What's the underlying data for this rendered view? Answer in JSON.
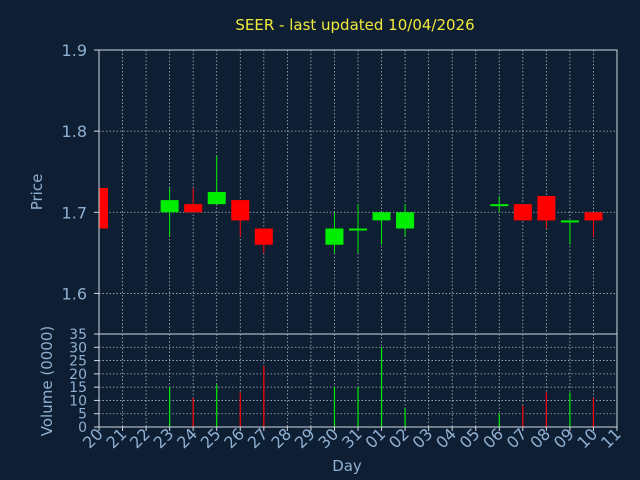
{
  "title": "SEER - last updated 10/04/2026",
  "colors": {
    "up": "#00ee00",
    "down": "#ff0000",
    "title": "#f2ea3a",
    "axis": "#8fb0d2",
    "background": "#0f1f33"
  },
  "chart_data": [
    {
      "type": "candlestick",
      "ylabel": "Price",
      "ylim": [
        1.55,
        1.9
      ],
      "yticks": [
        "1.6",
        "1.7",
        "1.8",
        "1.9"
      ],
      "grid": true,
      "candles": [
        {
          "day": "20",
          "open": 1.73,
          "close": 1.68,
          "high": 1.73,
          "low": 1.68
        },
        {
          "day": "23",
          "open": 1.7,
          "close": 1.715,
          "high": 1.73,
          "low": 1.67
        },
        {
          "day": "24",
          "open": 1.71,
          "close": 1.7,
          "high": 1.73,
          "low": 1.7
        },
        {
          "day": "25",
          "open": 1.71,
          "close": 1.725,
          "high": 1.77,
          "low": 1.71
        },
        {
          "day": "26",
          "open": 1.715,
          "close": 1.69,
          "high": 1.715,
          "low": 1.67
        },
        {
          "day": "27",
          "open": 1.68,
          "close": 1.66,
          "high": 1.68,
          "low": 1.65
        },
        {
          "day": "30",
          "open": 1.66,
          "close": 1.68,
          "high": 1.7,
          "low": 1.65
        },
        {
          "day": "31",
          "open": 1.68,
          "close": 1.68,
          "high": 1.71,
          "low": 1.65
        },
        {
          "day": "01",
          "open": 1.69,
          "close": 1.7,
          "high": 1.7,
          "low": 1.66
        },
        {
          "day": "02",
          "open": 1.68,
          "close": 1.7,
          "high": 1.71,
          "low": 1.67
        },
        {
          "day": "06",
          "open": 1.71,
          "close": 1.71,
          "high": 1.72,
          "low": 1.7
        },
        {
          "day": "07",
          "open": 1.71,
          "close": 1.69,
          "high": 1.71,
          "low": 1.69
        },
        {
          "day": "08",
          "open": 1.72,
          "close": 1.69,
          "high": 1.72,
          "low": 1.68
        },
        {
          "day": "09",
          "open": 1.69,
          "close": 1.69,
          "high": 1.69,
          "low": 1.66
        },
        {
          "day": "10",
          "open": 1.7,
          "close": 1.69,
          "high": 1.7,
          "low": 1.67
        }
      ]
    },
    {
      "type": "bar",
      "ylabel": "Volume (0000)",
      "xlabel": "Day",
      "ylim": [
        0,
        35
      ],
      "yticks": [
        "0",
        "5",
        "10",
        "15",
        "20",
        "25",
        "30",
        "35"
      ],
      "categories": [
        "20",
        "21",
        "22",
        "23",
        "24",
        "25",
        "26",
        "27",
        "28",
        "29",
        "30",
        "31",
        "01",
        "02",
        "03",
        "04",
        "05",
        "06",
        "07",
        "08",
        "09",
        "10",
        "11"
      ],
      "values": [
        0,
        0,
        0,
        15,
        11,
        16,
        13,
        23,
        0,
        0,
        15,
        15,
        30,
        7,
        0,
        0,
        0,
        5,
        8,
        13,
        13,
        11,
        0
      ],
      "bar_direction": [
        "down",
        "none",
        "none",
        "up",
        "down",
        "up",
        "down",
        "down",
        "none",
        "none",
        "up",
        "up",
        "up",
        "up",
        "none",
        "none",
        "none",
        "up",
        "down",
        "down",
        "up",
        "down",
        "none"
      ]
    }
  ]
}
